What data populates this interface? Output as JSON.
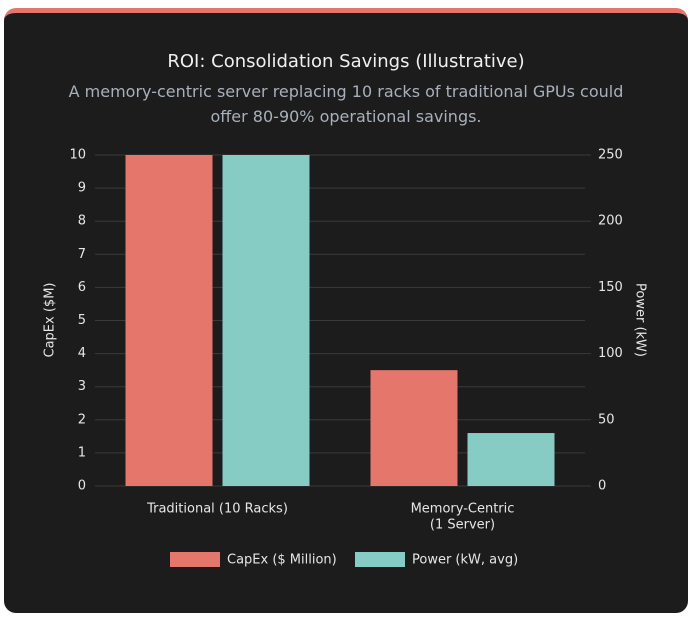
{
  "chart_data": {
    "type": "bar",
    "title": "ROI: Consolidation Savings (Illustrative)",
    "subtitle": "A memory-centric server replacing 10 racks of traditional GPUs could offer 80-90% operational savings.",
    "categories": [
      [
        "Traditional (10 Racks)"
      ],
      [
        "Memory-Centric",
        "(1 Server)"
      ]
    ],
    "series": [
      {
        "name": "CapEx ($ Million)",
        "color": "#e5766c",
        "values": [
          10,
          3.5
        ]
      },
      {
        "name": "Power (kW, avg)",
        "color": "#86cbc4",
        "values": [
          250,
          40
        ],
        "axis": "y2"
      }
    ],
    "ylabel": "CapEx ($M)",
    "y2label": "Power (kW)",
    "ylim": [
      0,
      10
    ],
    "yticks": [
      0,
      1,
      2,
      3,
      4,
      5,
      6,
      7,
      8,
      9,
      10
    ],
    "y2lim": [
      0,
      250
    ],
    "y2ticks": [
      0,
      50,
      100,
      150,
      200,
      250
    ],
    "grid": true,
    "legend": "bottom"
  }
}
